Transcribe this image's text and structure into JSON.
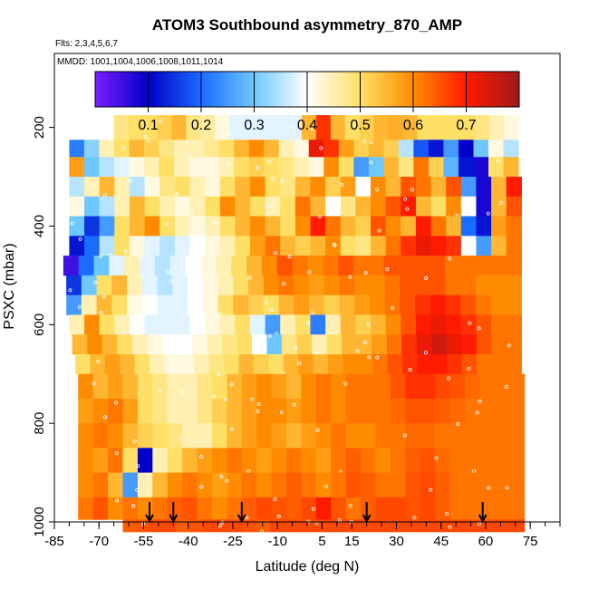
{
  "chart_data": {
    "type": "heatmap",
    "title": "ATOM3 Southbound asymmetry_870_AMP",
    "flights_note": "Flts: 2,3,4,5,6,7",
    "mmdd_note": "MMDD: 1001,1004,1006,1008,1011,1014",
    "xlabel": "Latitude (deg N)",
    "ylabel": "PSXC (mbar)",
    "xlim": [
      -85,
      85
    ],
    "ylim": [
      1000,
      50
    ],
    "x_ticks": [
      -85,
      -70,
      -55,
      -40,
      -25,
      -10,
      5,
      15,
      30,
      45,
      60,
      75
    ],
    "x_minor_step": 5,
    "y_ticks": [
      200,
      400,
      600,
      800,
      1000
    ],
    "colorbar": {
      "range": [
        0,
        0.8
      ],
      "ticks": [
        0.1,
        0.2,
        0.3,
        0.4,
        0.5,
        0.6,
        0.7
      ],
      "tick_labels": [
        "0.1",
        "0.2",
        "0.3",
        "0.4",
        "0.5",
        "0.6",
        "0.7"
      ],
      "colors": [
        "#7a1fff",
        "#0000c8",
        "#1a6bff",
        "#6ec8ff",
        "#ffffff",
        "#ffe066",
        "#ff8c00",
        "#ff1a00",
        "#9c1a1a"
      ]
    },
    "pressure_bands": [
      {
        "p_top": 175,
        "p_bot": 225,
        "lat_start": -65,
        "lat_end": 71,
        "values": [
          0.48,
          0.5,
          0.5,
          0.52,
          0.55,
          0.48,
          0.46,
          0.42,
          0.38,
          0.38,
          0.38,
          0.38,
          0.38,
          0.55,
          0.68,
          0.55,
          0.5,
          0.52,
          0.55,
          0.56,
          0.55,
          0.5,
          0.5,
          0.5,
          0.5,
          0.48,
          0.45,
          0.42
        ]
      },
      {
        "p_top": 225,
        "p_bot": 260,
        "lat_start": -80,
        "lat_end": 71,
        "values": [
          0.22,
          0.32,
          0.45,
          0.5,
          0.55,
          0.52,
          0.48,
          0.45,
          0.45,
          0.47,
          0.5,
          0.55,
          0.6,
          0.55,
          0.45,
          0.42,
          0.72,
          0.68,
          0.58,
          0.52,
          0.55,
          0.52,
          0.35,
          0.18,
          0.12,
          0.25,
          0.1,
          0.3,
          0.42,
          0.35
        ]
      },
      {
        "p_top": 260,
        "p_bot": 300,
        "lat_start": -80,
        "lat_end": 71,
        "values": [
          0.58,
          0.3,
          0.35,
          0.38,
          0.42,
          0.45,
          0.5,
          0.45,
          0.42,
          0.42,
          0.45,
          0.5,
          0.52,
          0.5,
          0.48,
          0.45,
          0.42,
          0.6,
          0.5,
          0.25,
          0.3,
          0.55,
          0.48,
          0.62,
          0.52,
          0.28,
          0.12,
          0.08,
          0.5,
          0.55
        ]
      },
      {
        "p_top": 300,
        "p_bot": 340,
        "lat_start": -80,
        "lat_end": 72,
        "values": [
          0.35,
          0.45,
          0.55,
          0.45,
          0.35,
          0.42,
          0.48,
          0.5,
          0.45,
          0.42,
          0.5,
          0.55,
          0.6,
          0.5,
          0.48,
          0.55,
          0.6,
          0.52,
          0.58,
          0.4,
          0.6,
          0.55,
          0.65,
          0.62,
          0.55,
          0.65,
          0.25,
          0.08,
          0.55,
          0.7
        ]
      },
      {
        "p_top": 340,
        "p_bot": 380,
        "lat_start": -80,
        "lat_end": 72,
        "values": [
          0.42,
          0.3,
          0.35,
          0.45,
          0.55,
          0.5,
          0.45,
          0.42,
          0.45,
          0.5,
          0.6,
          0.55,
          0.5,
          0.45,
          0.5,
          0.62,
          0.55,
          0.4,
          0.48,
          0.55,
          0.6,
          0.65,
          0.7,
          0.55,
          0.5,
          0.6,
          0.4,
          0.08,
          0.55,
          0.65
        ]
      },
      {
        "p_top": 380,
        "p_bot": 420,
        "lat_start": -80,
        "lat_end": 72,
        "values": [
          0.3,
          0.15,
          0.25,
          0.5,
          0.55,
          0.6,
          0.5,
          0.45,
          0.42,
          0.45,
          0.5,
          0.55,
          0.6,
          0.55,
          0.5,
          0.6,
          0.7,
          0.62,
          0.55,
          0.52,
          0.65,
          0.6,
          0.55,
          0.7,
          0.62,
          0.55,
          0.2,
          0.12,
          0.58,
          0.62
        ]
      },
      {
        "p_top": 420,
        "p_bot": 460,
        "lat_start": -80,
        "lat_end": 72,
        "values": [
          0.12,
          0.2,
          0.35,
          0.5,
          0.42,
          0.38,
          0.35,
          0.38,
          0.4,
          0.42,
          0.45,
          0.5,
          0.58,
          0.62,
          0.55,
          0.52,
          0.55,
          0.6,
          0.5,
          0.48,
          0.55,
          0.62,
          0.68,
          0.72,
          0.7,
          0.68,
          0.4,
          0.25,
          0.55,
          0.62
        ]
      },
      {
        "p_top": 460,
        "p_bot": 500,
        "lat_start": -82,
        "lat_end": 72,
        "values": [
          0.05,
          0.2,
          0.3,
          0.38,
          0.45,
          0.38,
          0.35,
          0.38,
          0.4,
          0.42,
          0.45,
          0.5,
          0.55,
          0.6,
          0.65,
          0.62,
          0.6,
          0.62,
          0.65,
          0.62,
          0.62,
          0.65,
          0.65,
          0.65,
          0.65,
          0.62,
          0.62,
          0.62,
          0.62,
          0.62
        ]
      },
      {
        "p_top": 500,
        "p_bot": 540,
        "lat_start": -81,
        "lat_end": 72,
        "values": [
          0.15,
          0.3,
          0.5,
          0.55,
          0.45,
          0.38,
          0.35,
          0.38,
          0.4,
          0.42,
          0.45,
          0.5,
          0.55,
          0.6,
          0.62,
          0.6,
          0.58,
          0.6,
          0.62,
          0.6,
          0.6,
          0.62,
          0.65,
          0.65,
          0.65,
          0.62,
          0.62,
          0.6,
          0.6,
          0.6
        ]
      },
      {
        "p_top": 540,
        "p_bot": 580,
        "lat_start": -81,
        "lat_end": 72,
        "values": [
          0.25,
          0.45,
          0.55,
          0.5,
          0.42,
          0.4,
          0.38,
          0.38,
          0.4,
          0.42,
          0.5,
          0.55,
          0.52,
          0.5,
          0.55,
          0.58,
          0.55,
          0.52,
          0.55,
          0.58,
          0.6,
          0.62,
          0.65,
          0.68,
          0.7,
          0.68,
          0.65,
          0.62,
          0.6,
          0.6
        ]
      },
      {
        "p_top": 580,
        "p_bot": 620,
        "lat_start": -80,
        "lat_end": 72,
        "values": [
          0.45,
          0.6,
          0.5,
          0.45,
          0.4,
          0.38,
          0.38,
          0.38,
          0.4,
          0.42,
          0.45,
          0.5,
          0.38,
          0.25,
          0.45,
          0.5,
          0.22,
          0.45,
          0.55,
          0.52,
          0.55,
          0.6,
          0.65,
          0.7,
          0.72,
          0.7,
          0.68,
          0.65,
          0.62,
          0.62
        ]
      },
      {
        "p_top": 620,
        "p_bot": 660,
        "lat_start": -79,
        "lat_end": 72,
        "values": [
          0.55,
          0.6,
          0.55,
          0.5,
          0.45,
          0.42,
          0.4,
          0.4,
          0.42,
          0.45,
          0.48,
          0.5,
          0.4,
          0.3,
          0.48,
          0.52,
          0.45,
          0.5,
          0.55,
          0.55,
          0.58,
          0.62,
          0.68,
          0.72,
          0.75,
          0.72,
          0.7,
          0.65,
          0.62,
          0.62
        ]
      },
      {
        "p_top": 660,
        "p_bot": 700,
        "lat_start": -78,
        "lat_end": 72,
        "values": [
          0.5,
          0.55,
          0.58,
          0.55,
          0.5,
          0.45,
          0.42,
          0.42,
          0.45,
          0.48,
          0.5,
          0.55,
          0.52,
          0.5,
          0.55,
          0.58,
          0.55,
          0.58,
          0.6,
          0.6,
          0.62,
          0.65,
          0.68,
          0.7,
          0.7,
          0.68,
          0.65,
          0.62,
          0.62,
          0.62
        ]
      },
      {
        "p_top": 700,
        "p_bot": 750,
        "lat_start": -77,
        "lat_end": 73,
        "values": [
          0.6,
          0.55,
          0.58,
          0.55,
          0.5,
          0.48,
          0.45,
          0.45,
          0.48,
          0.5,
          0.55,
          0.58,
          0.6,
          0.58,
          0.55,
          0.6,
          0.62,
          0.6,
          0.62,
          0.62,
          0.62,
          0.65,
          0.68,
          0.68,
          0.66,
          0.65,
          0.63,
          0.62,
          0.62,
          0.62
        ]
      },
      {
        "p_top": 750,
        "p_bot": 800,
        "lat_start": -77,
        "lat_end": 73,
        "values": [
          0.58,
          0.6,
          0.62,
          0.58,
          0.5,
          0.48,
          0.45,
          0.45,
          0.48,
          0.52,
          0.55,
          0.58,
          0.6,
          0.6,
          0.58,
          0.6,
          0.62,
          0.6,
          0.62,
          0.62,
          0.62,
          0.63,
          0.65,
          0.65,
          0.64,
          0.63,
          0.62,
          0.62,
          0.62,
          0.62
        ]
      },
      {
        "p_top": 800,
        "p_bot": 850,
        "lat_start": -77,
        "lat_end": 73,
        "values": [
          0.6,
          0.62,
          0.6,
          0.55,
          0.52,
          0.5,
          0.48,
          0.45,
          0.45,
          0.5,
          0.55,
          0.58,
          0.6,
          0.58,
          0.55,
          0.58,
          0.6,
          0.62,
          0.6,
          0.6,
          0.62,
          0.62,
          0.63,
          0.63,
          0.62,
          0.62,
          0.62,
          0.62,
          0.62,
          0.62
        ]
      },
      {
        "p_top": 850,
        "p_bot": 900,
        "lat_start": -77,
        "lat_end": 73,
        "values": [
          0.6,
          0.58,
          0.62,
          0.5,
          0.1,
          0.45,
          0.5,
          0.55,
          0.58,
          0.6,
          0.62,
          0.6,
          0.58,
          0.6,
          0.62,
          0.6,
          0.58,
          0.62,
          0.64,
          0.62,
          0.6,
          0.62,
          0.64,
          0.65,
          0.63,
          0.62,
          0.62,
          0.62,
          0.62,
          0.62
        ]
      },
      {
        "p_top": 900,
        "p_bot": 950,
        "lat_start": -77,
        "lat_end": 73,
        "values": [
          0.6,
          0.62,
          0.55,
          0.25,
          0.45,
          0.55,
          0.6,
          0.62,
          0.6,
          0.58,
          0.6,
          0.62,
          0.6,
          0.62,
          0.64,
          0.62,
          0.6,
          0.62,
          0.65,
          0.64,
          0.62,
          0.62,
          0.65,
          0.66,
          0.64,
          0.62,
          0.62,
          0.62,
          0.62,
          0.62
        ]
      },
      {
        "p_top": 950,
        "p_bot": 995,
        "lat_start": -77,
        "lat_end": 73,
        "values": [
          0.62,
          0.65,
          0.6,
          0.62,
          0.6,
          0.62,
          0.64,
          0.65,
          0.62,
          0.6,
          0.62,
          0.64,
          0.66,
          0.65,
          0.64,
          0.66,
          0.7,
          0.65,
          0.62,
          0.64,
          0.66,
          0.66,
          0.65,
          0.66,
          0.64,
          0.62,
          0.62,
          0.62,
          0.62,
          0.62
        ]
      },
      {
        "p_top": 995,
        "p_bot": 1020,
        "lat_start": -62,
        "lat_end": 73,
        "values": [
          0.64,
          0.65,
          0.66,
          0.66,
          0.64,
          0.65,
          0.66,
          0.66,
          0.66,
          0.65,
          0.64,
          0.66,
          0.66,
          0.66,
          0.66,
          0.66,
          0.66,
          0.66,
          0.66,
          0.66,
          0.66,
          0.66,
          0.66,
          0.66,
          0.66,
          0.66,
          0.66,
          0.66,
          0.66,
          0.66
        ]
      }
    ],
    "arrow_latitudes": [
      -53,
      -45,
      -22,
      20,
      59
    ]
  }
}
